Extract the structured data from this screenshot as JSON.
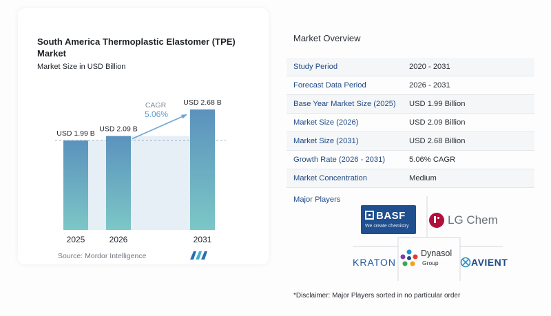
{
  "chart_card": {
    "title": "South America Thermoplastic Elastomer (TPE) Market",
    "subtitle": "Market Size in USD Billion",
    "source": "Source:  Mordor Intelligence",
    "cagr_label": "CAGR",
    "cagr_value": "5.06%"
  },
  "chart_data": {
    "type": "bar",
    "title": "South America Thermoplastic Elastomer (TPE) Market",
    "subtitle": "Market Size in USD Billion",
    "categories": [
      "2025",
      "2026",
      "2031"
    ],
    "values": [
      1.99,
      2.09,
      2.68
    ],
    "data_labels": [
      "USD 1.99 B",
      "USD 2.09 B",
      "USD 2.68 B"
    ],
    "ylim": [
      0,
      2.68
    ],
    "grid": false,
    "reference_line": 1.99,
    "bar_color_top": "#5b92bd",
    "bar_color_bottom": "#7cc7c6"
  },
  "overview": {
    "title": "Market Overview",
    "rows": [
      {
        "label": "Study Period",
        "value": "2020 - 2031"
      },
      {
        "label": "Forecast Data Period",
        "value": "2026 - 2031"
      },
      {
        "label": "Base Year Market Size (2025)",
        "value": "USD 1.99 Billion"
      },
      {
        "label": "Market Size (2026)",
        "value": "USD 2.09 Billion"
      },
      {
        "label": "Market Size (2031)",
        "value": "USD 2.68 Billion"
      },
      {
        "label": "Growth Rate (2026 - 2031)",
        "value": "5.06% CAGR"
      },
      {
        "label": "Market Concentration",
        "value": "Medium"
      }
    ]
  },
  "players": {
    "title": "Major Players",
    "basf_name": "BASF",
    "basf_tagline": "We create chemistry",
    "lg_name": "LG Chem",
    "kraton_name": "KRATON",
    "dynasol_name": "Dynasol",
    "dynasol_group": "Group",
    "avient_name": "AVIENT"
  },
  "disclaimer": "*Disclaimer: Major Players sorted in no particular order"
}
